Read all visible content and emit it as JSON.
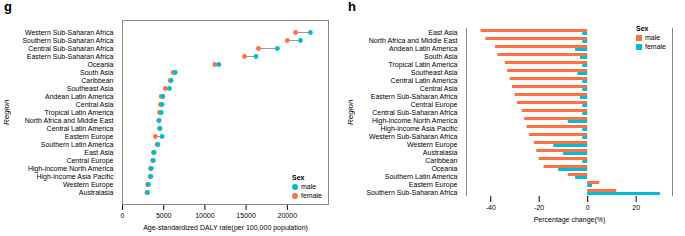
{
  "chart_data": [
    {
      "type": "dumbbell",
      "title": "g",
      "orientation": "horizontal",
      "categories": [
        "Western Sub-Saharan Africa",
        "Southern Sub-Saharan Africa",
        "Central Sub-Saharan Africa",
        "Eastern Sub-Saharan Africa",
        "Oceania",
        "South Asia",
        "Caribbean",
        "Southeast Asia",
        "Andean Latin America",
        "Central Asia",
        "Tropical Latin America",
        "North Africa and Middle East",
        "Central Latin America",
        "Eastern Europe",
        "Southern Latin America",
        "East Asia",
        "Central Europe",
        "High-income North America",
        "High-income Asia Pacific",
        "Western Europe",
        "Australasia"
      ],
      "series": [
        {
          "name": "male",
          "color": "#00BCD4",
          "values": [
            22800,
            21600,
            18800,
            16200,
            11700,
            6400,
            5900,
            5700,
            4900,
            4800,
            4700,
            4450,
            4550,
            4800,
            4300,
            3850,
            3750,
            3500,
            3450,
            3150,
            3050
          ]
        },
        {
          "name": "female",
          "color": "#FF7043",
          "values": [
            21000,
            20000,
            16500,
            14800,
            11200,
            6150,
            5800,
            5200,
            4700,
            4600,
            4500,
            4400,
            4500,
            4000,
            4200,
            3750,
            3650,
            3400,
            3350,
            3050,
            2950
          ]
        }
      ],
      "xlabel": "Age-standardized DALY rate(per 100,000 population)",
      "ylabel": "Region",
      "xlim": [
        0,
        25000
      ],
      "xticks": [
        0,
        5000,
        10000,
        15000,
        20000
      ],
      "legend": "lower right",
      "legend_title": "Sex"
    },
    {
      "type": "bar",
      "title": "h",
      "orientation": "horizontal",
      "categories": [
        "East Asia",
        "North Africa and Middle East",
        "Andean Latin America",
        "South Asia",
        "Tropical Latin America",
        "Southeast Asia",
        "Central Latin America",
        "Central Asia",
        "Eastern Sub-Saharan Africa",
        "Central Europe",
        "Central Sub-Saharan Africa",
        "High-income North America",
        "High-income Asia Pacific",
        "Western Sub-Saharan Africa",
        "Western Europe",
        "Australasia",
        "Caribbean",
        "Oceania",
        "Southern Latin America",
        "Eastern Europe",
        "Southern Sub-Saharan Africa"
      ],
      "series": [
        {
          "name": "male",
          "color": "#FF7043",
          "values": [
            -44,
            -42,
            -38,
            -37,
            -34,
            -33,
            -32,
            -31,
            -30,
            -29,
            -27,
            -26,
            -25,
            -24,
            -22,
            -21,
            -20,
            -18,
            -8,
            5,
            12
          ]
        },
        {
          "name": "female",
          "color": "#00BCD4",
          "values": [
            -2,
            -2,
            -5,
            -3,
            -2,
            -4,
            -2,
            -2,
            -3,
            -2,
            -2,
            -8,
            -2,
            -2,
            -14,
            -10,
            -2,
            -12,
            -5,
            2,
            30
          ]
        }
      ],
      "xlabel": "Percentage change(%)",
      "ylabel": "Region",
      "xlim": [
        -50,
        35
      ],
      "xticks": [
        -40,
        -20,
        0,
        20
      ],
      "legend": "upper right",
      "legend_title": "Sex"
    }
  ]
}
